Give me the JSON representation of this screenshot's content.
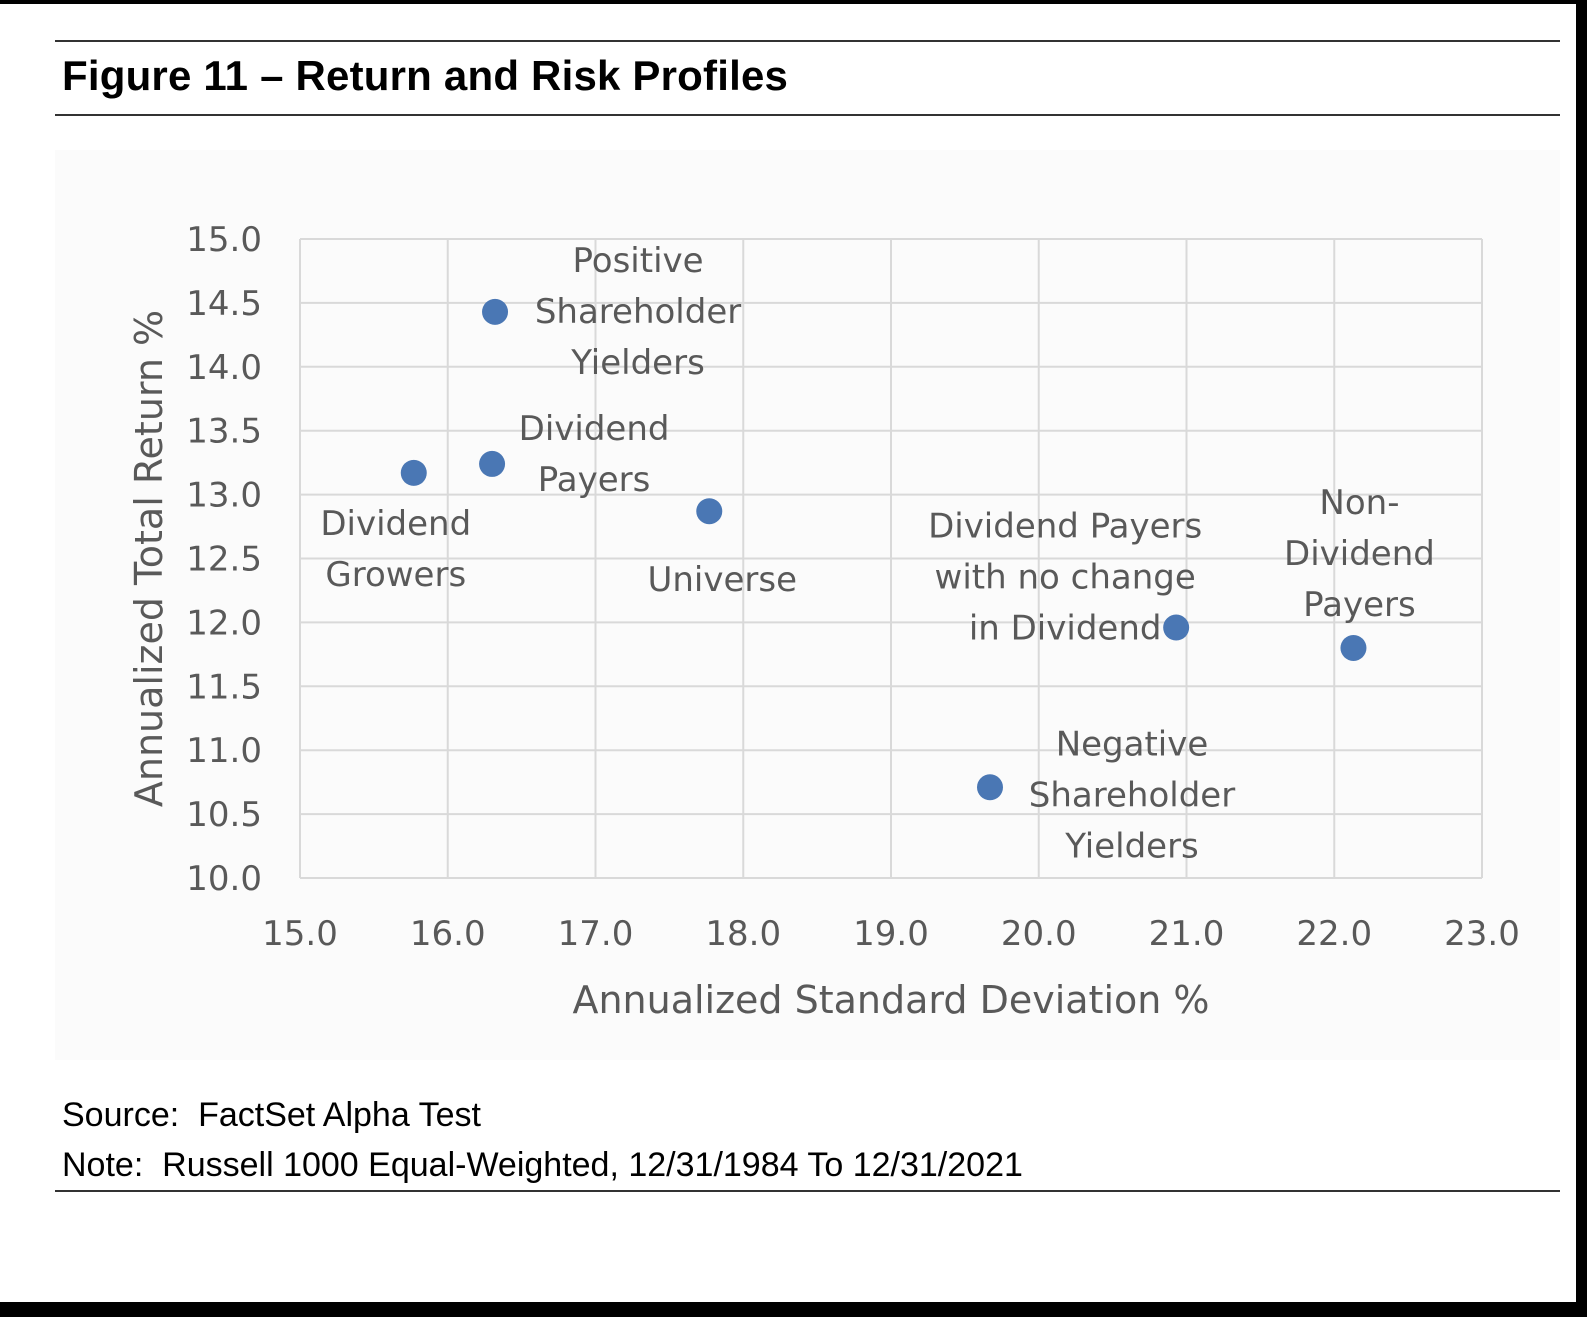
{
  "figure": {
    "title": "Figure 11 – Return and Risk Profiles",
    "source": "Source:  FactSet Alpha Test",
    "note": "Note:  Russell 1000 Equal-Weighted, 12/31/1984 To 12/31/2021"
  },
  "colors": {
    "point": "#4a77b4",
    "grid": "#d9d9d9",
    "text": "#595959"
  },
  "chart_data": {
    "type": "scatter",
    "title": "",
    "xlabel": "Annualized Standard Deviation %",
    "ylabel": "Annualized Total Return %",
    "xlim": [
      15.0,
      23.0
    ],
    "ylim": [
      10.0,
      15.0
    ],
    "x_ticks": [
      "15.0",
      "16.0",
      "17.0",
      "18.0",
      "19.0",
      "20.0",
      "21.0",
      "22.0",
      "23.0"
    ],
    "y_ticks": [
      "10.0",
      "10.5",
      "11.0",
      "11.5",
      "12.0",
      "12.5",
      "13.0",
      "13.5",
      "14.0",
      "14.5",
      "15.0"
    ],
    "grid": true,
    "legend": "none",
    "points": [
      {
        "label": [
          "Positive",
          "Shareholder",
          "Yielders"
        ],
        "x": 16.32,
        "y": 14.43
      },
      {
        "label": [
          "Dividend",
          "Payers"
        ],
        "x": 16.3,
        "y": 13.24
      },
      {
        "label": [
          "Dividend",
          "Growers"
        ],
        "x": 15.77,
        "y": 13.17
      },
      {
        "label": [
          "Universe"
        ],
        "x": 17.77,
        "y": 12.87
      },
      {
        "label": [
          "Dividend Payers",
          "with no change",
          "in Dividend"
        ],
        "x": 20.93,
        "y": 11.96
      },
      {
        "label": [
          "Non-",
          "Dividend",
          "Payers"
        ],
        "x": 22.13,
        "y": 11.8
      },
      {
        "label": [
          "Negative",
          "Shareholder",
          "Yielders"
        ],
        "x": 19.67,
        "y": 10.71
      }
    ]
  }
}
